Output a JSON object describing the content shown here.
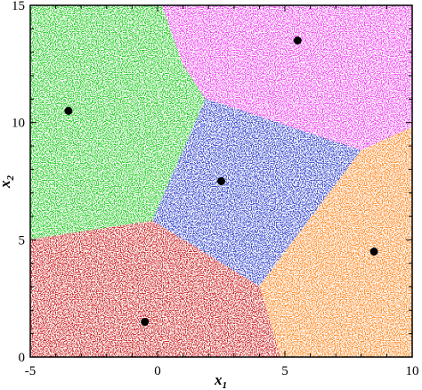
{
  "chart_data": {
    "type": "scatter",
    "title": "",
    "xlabel": "x",
    "xlabel_subscript": "1",
    "ylabel": "x",
    "ylabel_subscript": "2",
    "xlim": [
      -5,
      10
    ],
    "ylim": [
      0,
      15
    ],
    "x_ticks": [
      -5,
      0,
      5,
      10
    ],
    "y_ticks": [
      0,
      5,
      10,
      15
    ],
    "x_tick_labels": [
      "-5",
      "0",
      "5",
      "10"
    ],
    "y_tick_labels": [
      "0",
      "5",
      "10",
      "15"
    ],
    "grid": false,
    "legend": "none",
    "regions": [
      {
        "color": "#22cc22",
        "center": [
          -3.5,
          10.5
        ],
        "polygon": [
          [
            -5,
            15
          ],
          [
            0.2,
            15
          ],
          [
            1.0,
            12.5
          ],
          [
            1.9,
            11.0
          ],
          [
            -0.2,
            5.8
          ],
          [
            -5,
            5.0
          ]
        ]
      },
      {
        "color": "#ee44ee",
        "center": [
          5.5,
          13.5
        ],
        "polygon": [
          [
            0.2,
            15
          ],
          [
            10,
            15
          ],
          [
            10,
            9.8
          ],
          [
            8.0,
            8.8
          ],
          [
            1.9,
            11.0
          ],
          [
            1.0,
            12.5
          ]
        ]
      },
      {
        "color": "#3344cc",
        "center": [
          2.5,
          7.5
        ],
        "polygon": [
          [
            1.9,
            11.0
          ],
          [
            8.0,
            8.8
          ],
          [
            4.0,
            3.0
          ],
          [
            -0.2,
            5.8
          ]
        ]
      },
      {
        "color": "#ff8822",
        "center": [
          8.5,
          4.5
        ],
        "polygon": [
          [
            8.0,
            8.8
          ],
          [
            10,
            9.8
          ],
          [
            10,
            0
          ],
          [
            4.8,
            0
          ],
          [
            4.0,
            3.0
          ]
        ]
      },
      {
        "color": "#cc2222",
        "center": [
          -0.5,
          1.5
        ],
        "polygon": [
          [
            -5,
            5.0
          ],
          [
            -0.2,
            5.8
          ],
          [
            4.0,
            3.0
          ],
          [
            4.8,
            0
          ],
          [
            -5,
            0
          ]
        ]
      }
    ],
    "centers": {
      "name": "",
      "color": "#000000",
      "points": [
        [
          -3.5,
          10.5
        ],
        [
          5.5,
          13.5
        ],
        [
          2.5,
          7.5
        ],
        [
          8.5,
          4.5
        ],
        [
          -0.5,
          1.5
        ]
      ]
    }
  }
}
